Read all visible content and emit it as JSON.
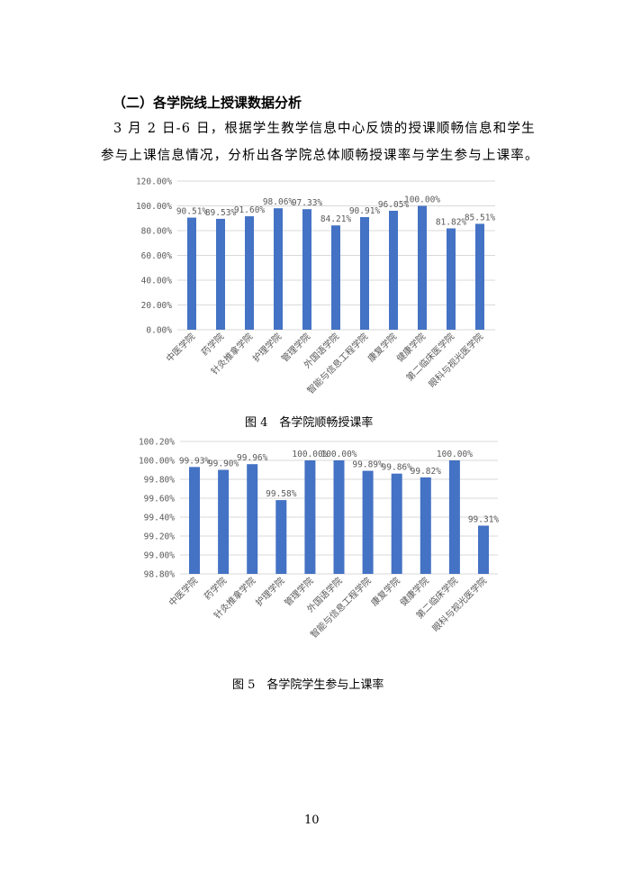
{
  "heading": "（二）各学院线上授课数据分析",
  "paragraph": {
    "line1": "3 月 2 日-6 日，根据学生教学信息中心反馈的授课顺畅信息和学生",
    "line2": "参与上课信息情况，分析出各学院总体顺畅授课率与学生参与上课率。"
  },
  "captions": {
    "fig4": "图 4　各学院顺畅授课率",
    "fig5": "图 5　各学院学生参与上课率"
  },
  "page_number": "10",
  "colors": {
    "bar": "#4472C4",
    "grid": "#D9D9D9",
    "text": "#595959"
  },
  "chart_data": [
    {
      "type": "bar",
      "title": "",
      "caption": "图 4　各学院顺畅授课率",
      "categories": [
        "中医学院",
        "药学院",
        "针灸推拿学院",
        "护理学院",
        "管理学院",
        "外国语学院",
        "智能与信息工程学院",
        "康复学院",
        "健康学院",
        "第二临床医学院",
        "眼科与视光医学院"
      ],
      "values": [
        90.51,
        89.53,
        91.6,
        98.06,
        97.33,
        84.21,
        90.91,
        96.05,
        100.0,
        81.82,
        85.51
      ],
      "data_labels": [
        "90.51%",
        "89.53%",
        "91.60%",
        "98.06%",
        "97.33%",
        "84.21%",
        "90.91%",
        "96.05%",
        "100.00%",
        "81.82%",
        "85.51%"
      ],
      "unit": "%",
      "ylim": [
        0,
        120
      ],
      "yticks": [
        "0.00%",
        "20.00%",
        "40.00%",
        "60.00%",
        "80.00%",
        "100.00%",
        "120.00%"
      ],
      "ytick_values": [
        0,
        20,
        40,
        60,
        80,
        100,
        120
      ],
      "grid": true,
      "legend": "none"
    },
    {
      "type": "bar",
      "title": "",
      "caption": "图 5　各学院学生参与上课率",
      "categories": [
        "中医学院",
        "药学院",
        "针灸推拿学院",
        "护理学院",
        "管理学院",
        "外国语学院",
        "智能与信息工程学院",
        "康复学院",
        "健康学院",
        "第二临床学院",
        "眼科与视光医学院"
      ],
      "values": [
        99.93,
        99.9,
        99.96,
        99.58,
        100.0,
        100.0,
        99.89,
        99.86,
        99.82,
        100.0,
        99.31
      ],
      "data_labels": [
        "99.93%",
        "99.90%",
        "99.96%",
        "99.58%",
        "100.00%",
        "100.00%",
        "99.89%",
        "99.86%",
        "99.82%",
        "100.00%",
        "99.31%"
      ],
      "unit": "%",
      "ylim": [
        98.8,
        100.2
      ],
      "yticks": [
        "98.80%",
        "99.00%",
        "99.20%",
        "99.40%",
        "99.60%",
        "99.80%",
        "100.00%",
        "100.20%"
      ],
      "ytick_values": [
        98.8,
        99.0,
        99.2,
        99.4,
        99.6,
        99.8,
        100.0,
        100.2
      ],
      "grid": true,
      "legend": "none"
    }
  ]
}
